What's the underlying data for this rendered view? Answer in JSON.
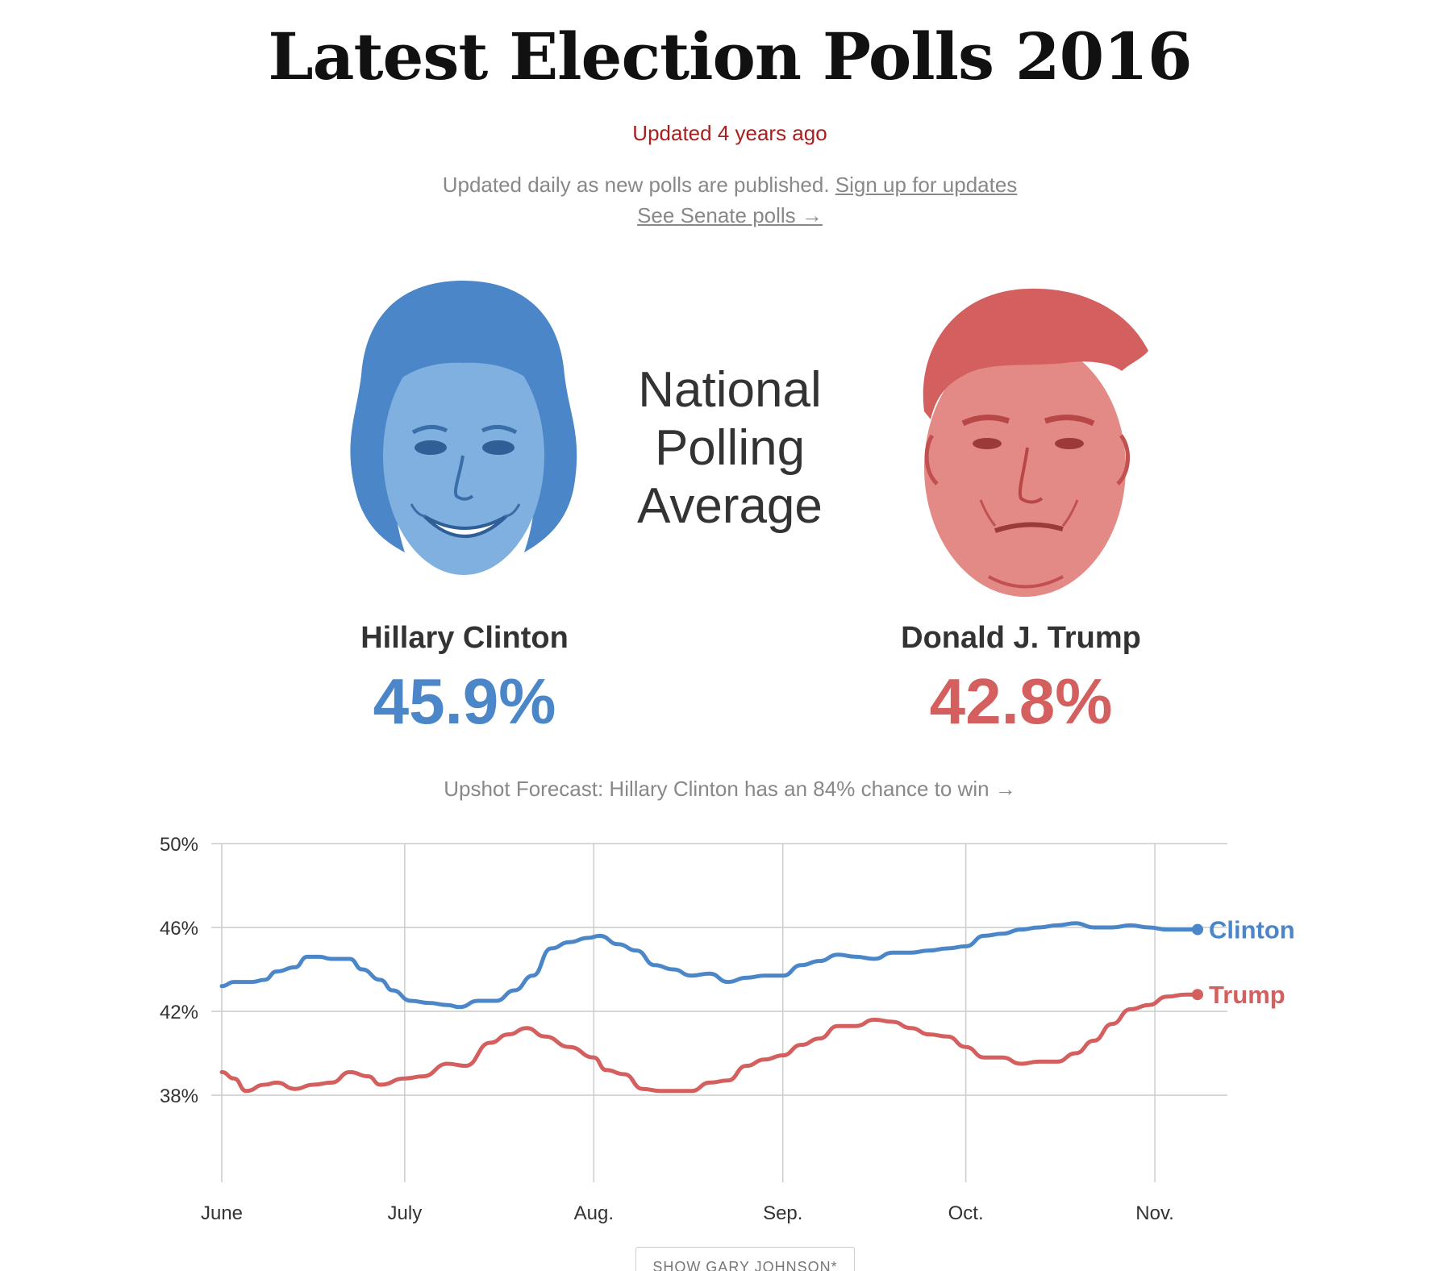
{
  "header": {
    "title": "Latest Election Polls 2016",
    "updated": "Updated 4 years ago",
    "description": "Updated daily as new polls are published.",
    "signup_link": "Sign up for updates",
    "senate_link": "See Senate polls →"
  },
  "center_heading": {
    "line1": "National",
    "line2": "Polling",
    "line3": "Average"
  },
  "candidates": [
    {
      "name": "Hillary Clinton",
      "percent": "45.9%",
      "color": "#4a86c8"
    },
    {
      "name": "Donald J. Trump",
      "percent": "42.8%",
      "color": "#d45f5f"
    }
  ],
  "forecast_link": "Upshot Forecast: Hillary Clinton has an 84% chance to win →",
  "show_johnson_button": "SHOW GARY JOHNSON*",
  "colors": {
    "clinton": "#4a86c8",
    "trump": "#d45f5f",
    "headline_red": "#a81f1f",
    "grid": "#cccccc"
  },
  "chart_data": {
    "type": "line",
    "x_unit": "date (2016)",
    "x_ticks": [
      {
        "date": "2016-06-01",
        "label": "June"
      },
      {
        "date": "2016-07-01",
        "label": "July"
      },
      {
        "date": "2016-08-01",
        "label": "Aug."
      },
      {
        "date": "2016-09-01",
        "label": "Sep."
      },
      {
        "date": "2016-10-01",
        "label": "Oct."
      },
      {
        "date": "2016-11-01",
        "label": "Nov."
      }
    ],
    "xlim": [
      "2016-06-01",
      "2016-11-08"
    ],
    "ylim": [
      35,
      50
    ],
    "y_ticks": [
      {
        "value": 50,
        "label": "50%"
      },
      {
        "value": 46,
        "label": "46%"
      },
      {
        "value": 42,
        "label": "42%"
      },
      {
        "value": 38,
        "label": "38%"
      }
    ],
    "grid": true,
    "series": [
      {
        "name": "Clinton",
        "color": "#4a86c8",
        "end_label": "Clinton",
        "points": [
          [
            "2016-06-01",
            43.2
          ],
          [
            "2016-06-03",
            43.4
          ],
          [
            "2016-06-06",
            43.4
          ],
          [
            "2016-06-08",
            43.5
          ],
          [
            "2016-06-10",
            43.9
          ],
          [
            "2016-06-13",
            44.1
          ],
          [
            "2016-06-15",
            44.6
          ],
          [
            "2016-06-17",
            44.6
          ],
          [
            "2016-06-19",
            44.5
          ],
          [
            "2016-06-22",
            44.5
          ],
          [
            "2016-06-24",
            44.0
          ],
          [
            "2016-06-27",
            43.5
          ],
          [
            "2016-06-29",
            43.0
          ],
          [
            "2016-07-02",
            42.5
          ],
          [
            "2016-07-05",
            42.4
          ],
          [
            "2016-07-08",
            42.3
          ],
          [
            "2016-07-10",
            42.2
          ],
          [
            "2016-07-13",
            42.5
          ],
          [
            "2016-07-16",
            42.5
          ],
          [
            "2016-07-19",
            43.0
          ],
          [
            "2016-07-22",
            43.7
          ],
          [
            "2016-07-25",
            45.0
          ],
          [
            "2016-07-28",
            45.3
          ],
          [
            "2016-07-31",
            45.5
          ],
          [
            "2016-08-02",
            45.6
          ],
          [
            "2016-08-05",
            45.2
          ],
          [
            "2016-08-08",
            44.9
          ],
          [
            "2016-08-11",
            44.2
          ],
          [
            "2016-08-14",
            44.0
          ],
          [
            "2016-08-17",
            43.7
          ],
          [
            "2016-08-20",
            43.8
          ],
          [
            "2016-08-23",
            43.4
          ],
          [
            "2016-08-26",
            43.6
          ],
          [
            "2016-08-29",
            43.7
          ],
          [
            "2016-09-01",
            43.7
          ],
          [
            "2016-09-04",
            44.2
          ],
          [
            "2016-09-07",
            44.4
          ],
          [
            "2016-09-10",
            44.7
          ],
          [
            "2016-09-13",
            44.6
          ],
          [
            "2016-09-16",
            44.5
          ],
          [
            "2016-09-19",
            44.8
          ],
          [
            "2016-09-22",
            44.8
          ],
          [
            "2016-09-25",
            44.9
          ],
          [
            "2016-09-28",
            45.0
          ],
          [
            "2016-10-01",
            45.1
          ],
          [
            "2016-10-04",
            45.6
          ],
          [
            "2016-10-07",
            45.7
          ],
          [
            "2016-10-10",
            45.9
          ],
          [
            "2016-10-13",
            46.0
          ],
          [
            "2016-10-16",
            46.1
          ],
          [
            "2016-10-19",
            46.2
          ],
          [
            "2016-10-22",
            46.0
          ],
          [
            "2016-10-25",
            46.0
          ],
          [
            "2016-10-28",
            46.1
          ],
          [
            "2016-10-31",
            46.0
          ],
          [
            "2016-11-03",
            45.9
          ],
          [
            "2016-11-08",
            45.9
          ]
        ]
      },
      {
        "name": "Trump",
        "color": "#d45f5f",
        "end_label": "Trump",
        "points": [
          [
            "2016-06-01",
            39.1
          ],
          [
            "2016-06-03",
            38.8
          ],
          [
            "2016-06-05",
            38.2
          ],
          [
            "2016-06-08",
            38.5
          ],
          [
            "2016-06-10",
            38.6
          ],
          [
            "2016-06-13",
            38.3
          ],
          [
            "2016-06-16",
            38.5
          ],
          [
            "2016-06-19",
            38.6
          ],
          [
            "2016-06-22",
            39.1
          ],
          [
            "2016-06-25",
            38.9
          ],
          [
            "2016-06-27",
            38.5
          ],
          [
            "2016-07-01",
            38.8
          ],
          [
            "2016-07-04",
            38.9
          ],
          [
            "2016-07-08",
            39.5
          ],
          [
            "2016-07-11",
            39.4
          ],
          [
            "2016-07-15",
            40.5
          ],
          [
            "2016-07-18",
            40.9
          ],
          [
            "2016-07-21",
            41.2
          ],
          [
            "2016-07-24",
            40.8
          ],
          [
            "2016-07-28",
            40.3
          ],
          [
            "2016-08-01",
            39.8
          ],
          [
            "2016-08-03",
            39.2
          ],
          [
            "2016-08-06",
            39.0
          ],
          [
            "2016-08-09",
            38.3
          ],
          [
            "2016-08-12",
            38.2
          ],
          [
            "2016-08-15",
            38.2
          ],
          [
            "2016-08-17",
            38.2
          ],
          [
            "2016-08-20",
            38.6
          ],
          [
            "2016-08-23",
            38.7
          ],
          [
            "2016-08-26",
            39.4
          ],
          [
            "2016-08-29",
            39.7
          ],
          [
            "2016-09-01",
            39.9
          ],
          [
            "2016-09-04",
            40.4
          ],
          [
            "2016-09-07",
            40.7
          ],
          [
            "2016-09-10",
            41.3
          ],
          [
            "2016-09-13",
            41.3
          ],
          [
            "2016-09-16",
            41.6
          ],
          [
            "2016-09-19",
            41.5
          ],
          [
            "2016-09-22",
            41.2
          ],
          [
            "2016-09-25",
            40.9
          ],
          [
            "2016-09-28",
            40.8
          ],
          [
            "2016-10-01",
            40.3
          ],
          [
            "2016-10-04",
            39.8
          ],
          [
            "2016-10-07",
            39.8
          ],
          [
            "2016-10-10",
            39.5
          ],
          [
            "2016-10-13",
            39.6
          ],
          [
            "2016-10-16",
            39.6
          ],
          [
            "2016-10-19",
            40.0
          ],
          [
            "2016-10-22",
            40.6
          ],
          [
            "2016-10-25",
            41.4
          ],
          [
            "2016-10-28",
            42.1
          ],
          [
            "2016-10-31",
            42.3
          ],
          [
            "2016-11-03",
            42.7
          ],
          [
            "2016-11-06",
            42.8
          ],
          [
            "2016-11-08",
            42.8
          ]
        ]
      }
    ]
  }
}
